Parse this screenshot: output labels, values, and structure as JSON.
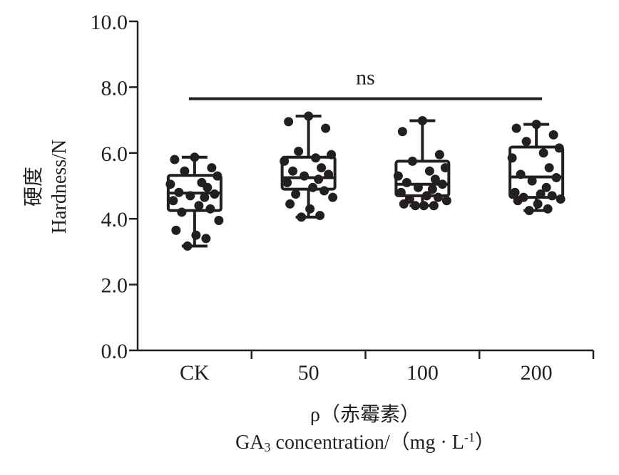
{
  "chart_data": {
    "type": "box",
    "categories": [
      "CK",
      "50",
      "100",
      "200"
    ],
    "ylim": [
      0,
      10
    ],
    "yticks": [
      "0.0",
      "2.0",
      "4.0",
      "6.0",
      "8.0",
      "10.0"
    ],
    "ylabel_cn": "硬度",
    "ylabel_en": "Hardness/N",
    "xlabel_cn": "ρ（赤霉素）",
    "xlabel_en_prefix": "GA",
    "xlabel_en_sub": "3",
    "xlabel_en_mid": " concentration/（mg · L",
    "xlabel_en_sup": "-1",
    "xlabel_en_suffix": "）",
    "significance": {
      "label": "ns",
      "from": "CK",
      "to": "200",
      "y": 7.65
    },
    "boxes": [
      {
        "category": "CK",
        "min": 3.17,
        "q1": 4.25,
        "median": 4.78,
        "q3": 5.32,
        "max": 5.87
      },
      {
        "category": "50",
        "min": 4.05,
        "q1": 4.9,
        "median": 5.25,
        "q3": 5.87,
        "max": 7.12
      },
      {
        "category": "100",
        "min": 4.4,
        "q1": 4.7,
        "median": 5.05,
        "q3": 5.75,
        "max": 6.98
      },
      {
        "category": "200",
        "min": 4.25,
        "q1": 4.65,
        "median": 5.27,
        "q3": 6.18,
        "max": 6.87
      }
    ],
    "points": [
      [
        5.87,
        5.8,
        5.55,
        5.45,
        5.3,
        5.1,
        5.05,
        4.95,
        4.8,
        4.75,
        4.7,
        4.65,
        4.55,
        4.4,
        4.3,
        4.2,
        3.95,
        3.65,
        3.5,
        3.4,
        3.17
      ],
      [
        7.12,
        6.95,
        6.75,
        6.05,
        5.95,
        5.85,
        5.75,
        5.55,
        5.45,
        5.35,
        5.3,
        5.2,
        5.1,
        4.95,
        4.85,
        4.75,
        4.65,
        4.45,
        4.3,
        4.1,
        4.05
      ],
      [
        6.98,
        6.65,
        5.95,
        5.75,
        5.55,
        5.45,
        5.3,
        5.2,
        5.1,
        5.05,
        4.95,
        4.9,
        4.8,
        4.7,
        4.65,
        4.6,
        4.55,
        4.45,
        4.4,
        4.4,
        4.4
      ],
      [
        6.87,
        6.75,
        6.55,
        6.35,
        6.15,
        6.0,
        5.85,
        5.55,
        5.35,
        5.25,
        5.15,
        4.95,
        4.8,
        4.75,
        4.7,
        4.65,
        4.6,
        4.55,
        4.45,
        4.3,
        4.25
      ]
    ]
  }
}
